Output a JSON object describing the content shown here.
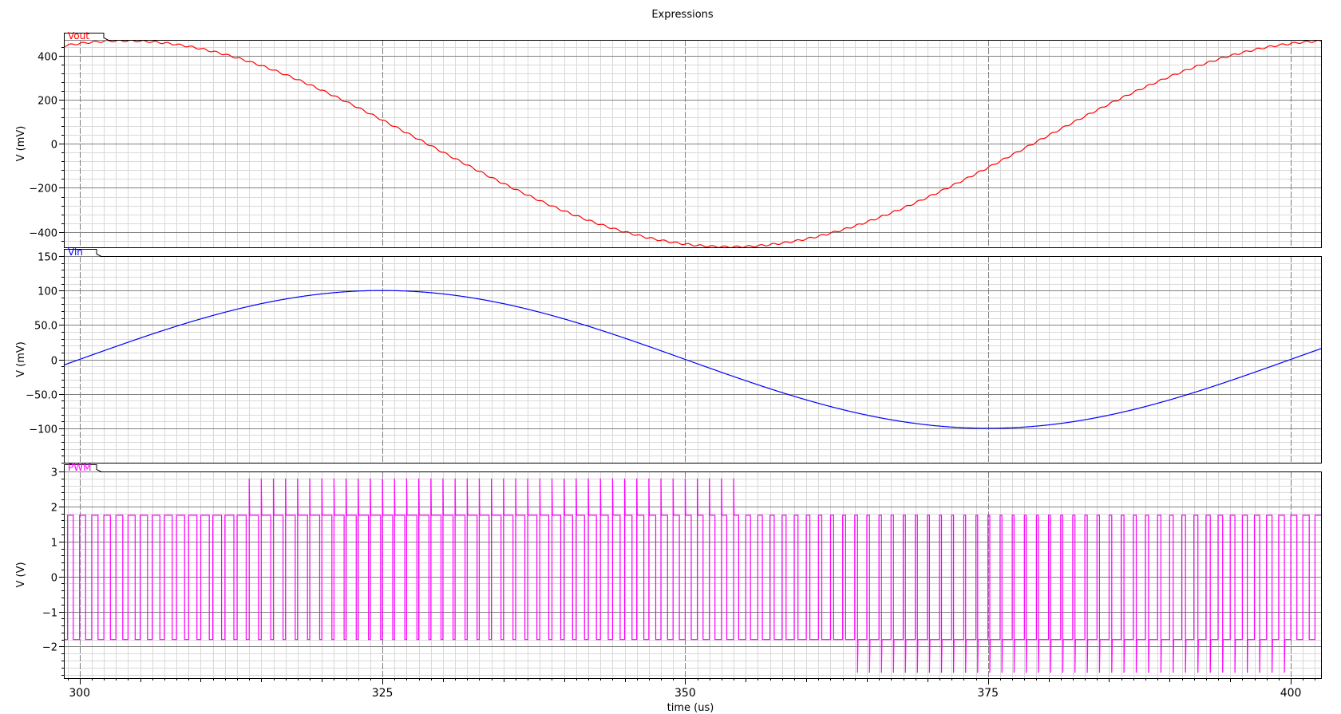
{
  "window": {
    "title": "Expressions"
  },
  "colors": {
    "background": "#ffffff",
    "frame": "#000000",
    "grid_major": "#808080",
    "grid_minor": "#d9d9d9",
    "vout": "#ff0000",
    "vin": "#0000ff",
    "pwm": "#ff00ff"
  },
  "chart_data": {
    "type": "line",
    "title": "Expressions",
    "xlabel": "time (us)",
    "xlim": [
      298.7,
      402.5
    ],
    "xticks": [
      300,
      325,
      350,
      375,
      400
    ],
    "xtick_labels": [
      "300",
      "325",
      "350",
      "375",
      "400"
    ],
    "grid": true,
    "panels": [
      {
        "key": "vout",
        "name": "Vout",
        "ylabel": "V (mV)",
        "ylim": [
          -470,
          472
        ],
        "yticks": [
          400,
          200,
          0,
          -200,
          -400
        ],
        "ytick_labels": [
          "400",
          "200",
          "0",
          "−200",
          "−400"
        ],
        "color": "#ff0000",
        "signal": {
          "kind": "sine",
          "offset": 0,
          "amplitude": 468,
          "phase_deg": 72,
          "period_us": 100,
          "ripple_period_us": 1.0,
          "ripple_amplitude": 4
        }
      },
      {
        "key": "vin",
        "name": "Vin",
        "ylabel": "V (mV)",
        "ylim": [
          -150,
          150
        ],
        "yticks": [
          150,
          100,
          50,
          0,
          -50,
          -100
        ],
        "ytick_labels": [
          "150",
          "100",
          "50.0",
          "0",
          "−50.0",
          "−100"
        ],
        "color": "#0000ff",
        "signal": {
          "kind": "sine",
          "offset": 0,
          "amplitude": 100,
          "phase_deg": 0,
          "period_us": 100,
          "start_x": 300
        }
      },
      {
        "key": "pwm",
        "name": "PWM",
        "ylabel": "V (V)",
        "ylim": [
          -2.9,
          3.0
        ],
        "yticks": [
          3,
          2,
          1,
          0,
          -1,
          -2
        ],
        "ytick_labels": [
          "3",
          "2",
          "1",
          "0",
          "−1",
          "−2"
        ],
        "color": "#ff00ff",
        "signal": {
          "kind": "pwm",
          "period_us": 1.0,
          "high_level": 1.75,
          "low_level": -1.8,
          "high_spike": 2.8,
          "low_spike": -2.75
        }
      }
    ]
  }
}
